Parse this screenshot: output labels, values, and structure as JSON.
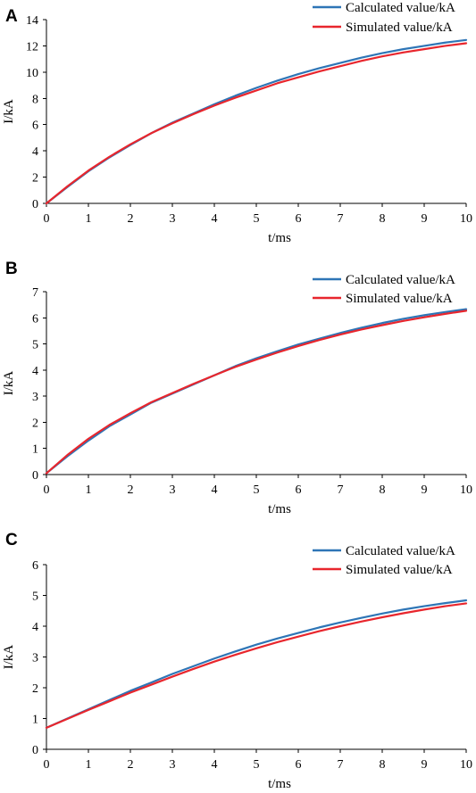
{
  "chart_data": [
    {
      "panel_label": "A",
      "type": "line",
      "xlabel": "t/ms",
      "ylabel": "I/kA",
      "xlim": [
        0,
        10
      ],
      "ylim": [
        0,
        14
      ],
      "xticks": [
        0,
        1,
        2,
        3,
        4,
        5,
        6,
        7,
        8,
        9,
        10
      ],
      "yticks": [
        0,
        2,
        4,
        6,
        8,
        10,
        12,
        14
      ],
      "grid": false,
      "legend_position": "top-right",
      "x": [
        0,
        0.5,
        1,
        1.5,
        2,
        2.5,
        3,
        3.5,
        4,
        4.5,
        5,
        5.5,
        6,
        6.5,
        7,
        7.5,
        8,
        8.5,
        9,
        9.5,
        10
      ],
      "series": [
        {
          "name": "Calculated value/kA",
          "color": "#2e75b6",
          "values": [
            0,
            1.25,
            2.45,
            3.5,
            4.45,
            5.35,
            6.15,
            6.85,
            7.55,
            8.2,
            8.8,
            9.35,
            9.85,
            10.3,
            10.7,
            11.1,
            11.45,
            11.75,
            12.0,
            12.25,
            12.45
          ]
        },
        {
          "name": "Simulated value/kA",
          "color": "#e8262d",
          "values": [
            0,
            1.3,
            2.5,
            3.55,
            4.5,
            5.35,
            6.1,
            6.8,
            7.45,
            8.05,
            8.6,
            9.15,
            9.6,
            10.05,
            10.45,
            10.85,
            11.2,
            11.5,
            11.75,
            12.0,
            12.2
          ]
        }
      ]
    },
    {
      "panel_label": "B",
      "type": "line",
      "xlabel": "t/ms",
      "ylabel": "I/kA",
      "xlim": [
        0,
        10
      ],
      "ylim": [
        0,
        7
      ],
      "xticks": [
        0,
        1,
        2,
        3,
        4,
        5,
        6,
        7,
        8,
        9,
        10
      ],
      "yticks": [
        0,
        1,
        2,
        3,
        4,
        5,
        6,
        7
      ],
      "grid": false,
      "legend_position": "top-right",
      "x": [
        0,
        0.5,
        1,
        1.5,
        2,
        2.5,
        3,
        3.5,
        4,
        4.5,
        5,
        5.5,
        6,
        6.5,
        7,
        7.5,
        8,
        8.5,
        9,
        9.5,
        10
      ],
      "series": [
        {
          "name": "Calculated value/kA",
          "color": "#2e75b6",
          "values": [
            0.05,
            0.7,
            1.3,
            1.85,
            2.3,
            2.75,
            3.1,
            3.45,
            3.8,
            4.15,
            4.45,
            4.72,
            4.98,
            5.2,
            5.42,
            5.62,
            5.8,
            5.96,
            6.1,
            6.22,
            6.33
          ]
        },
        {
          "name": "Simulated value/kA",
          "color": "#e8262d",
          "values": [
            0.05,
            0.75,
            1.37,
            1.9,
            2.35,
            2.77,
            3.12,
            3.47,
            3.8,
            4.12,
            4.4,
            4.67,
            4.92,
            5.15,
            5.36,
            5.55,
            5.72,
            5.88,
            6.02,
            6.15,
            6.27
          ]
        }
      ]
    },
    {
      "panel_label": "C",
      "type": "line",
      "xlabel": "t/ms",
      "ylabel": "I/kA",
      "xlim": [
        0,
        10
      ],
      "ylim": [
        0,
        6
      ],
      "xticks": [
        0,
        1,
        2,
        3,
        4,
        5,
        6,
        7,
        8,
        9,
        10
      ],
      "yticks": [
        0,
        1,
        2,
        3,
        4,
        5,
        6
      ],
      "grid": false,
      "legend_position": "top-right",
      "x": [
        0,
        0.5,
        1,
        1.5,
        2,
        2.5,
        3,
        3.5,
        4,
        4.5,
        5,
        5.5,
        6,
        6.5,
        7,
        7.5,
        8,
        8.5,
        9,
        9.5,
        10
      ],
      "series": [
        {
          "name": "Calculated value/kA",
          "color": "#2e75b6",
          "values": [
            0.7,
            1.0,
            1.3,
            1.6,
            1.9,
            2.17,
            2.45,
            2.7,
            2.95,
            3.18,
            3.4,
            3.6,
            3.78,
            3.96,
            4.12,
            4.27,
            4.41,
            4.54,
            4.65,
            4.75,
            4.84
          ]
        },
        {
          "name": "Simulated value/kA",
          "color": "#e8262d",
          "values": [
            0.7,
            0.99,
            1.28,
            1.56,
            1.84,
            2.1,
            2.36,
            2.61,
            2.85,
            3.07,
            3.28,
            3.48,
            3.66,
            3.84,
            4.0,
            4.15,
            4.29,
            4.42,
            4.54,
            4.65,
            4.74
          ]
        }
      ]
    }
  ]
}
